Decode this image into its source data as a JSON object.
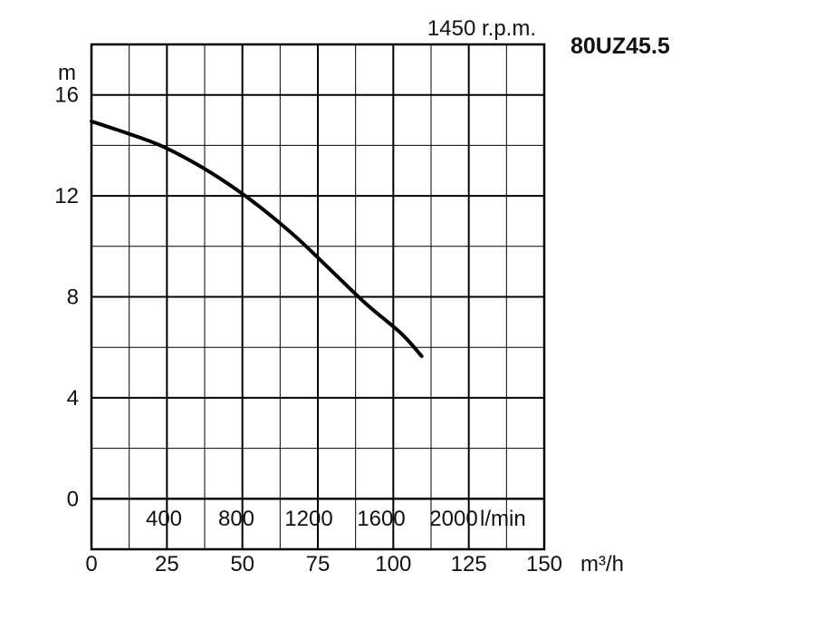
{
  "chart_data": {
    "type": "line",
    "title": "80UZ45.5",
    "subtitle": "1450 r.p.m.",
    "ylabel": "m",
    "xlabel": "m³/h",
    "xlabel_secondary": "l/min",
    "xlim": [
      0,
      150
    ],
    "ylim": [
      -2,
      18
    ],
    "grid": true,
    "y_ticks": [
      {
        "value": 16,
        "label": "16"
      },
      {
        "value": 12,
        "label": "12"
      },
      {
        "value": 8,
        "label": "8"
      },
      {
        "value": 4,
        "label": "4"
      },
      {
        "value": 0,
        "label": "0"
      }
    ],
    "x_ticks": [
      {
        "value": 0,
        "label": "0"
      },
      {
        "value": 25,
        "label": "25"
      },
      {
        "value": 50,
        "label": "50"
      },
      {
        "value": 75,
        "label": "75"
      },
      {
        "value": 100,
        "label": "100"
      },
      {
        "value": 125,
        "label": "125"
      },
      {
        "value": 150,
        "label": "150"
      }
    ],
    "x_ticks_secondary": [
      {
        "value": 24,
        "label": "400"
      },
      {
        "value": 48,
        "label": "800"
      },
      {
        "value": 72,
        "label": "1200"
      },
      {
        "value": 96,
        "label": "1600"
      },
      {
        "value": 120,
        "label": "2000"
      }
    ],
    "series": [
      {
        "color": "#000000",
        "points": [
          [
            0,
            14.95
          ],
          [
            11.4,
            14.5
          ],
          [
            22.8,
            14.0
          ],
          [
            34.2,
            13.3
          ],
          [
            45.6,
            12.45
          ],
          [
            57,
            11.45
          ],
          [
            68.4,
            10.3
          ],
          [
            79.8,
            9.0
          ],
          [
            91.2,
            7.7
          ],
          [
            102.6,
            6.55
          ],
          [
            109.4,
            5.65
          ]
        ]
      }
    ]
  }
}
